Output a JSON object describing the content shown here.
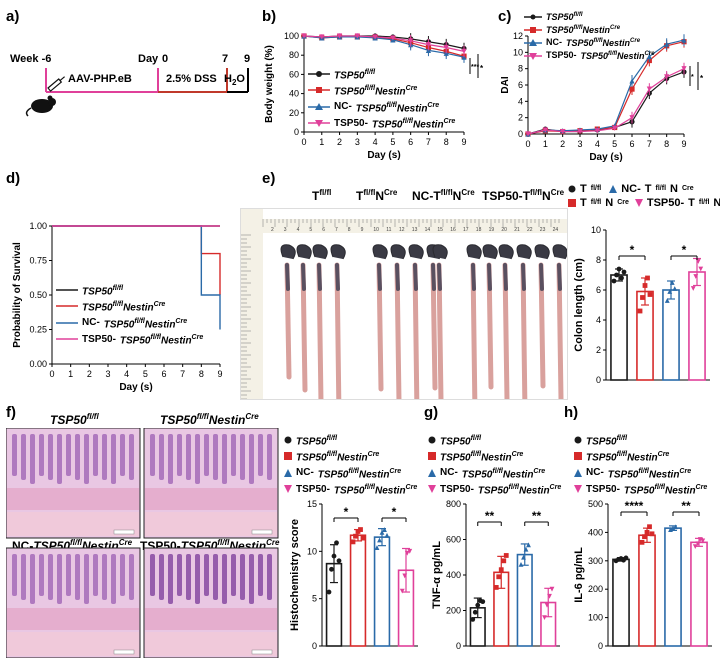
{
  "panel_labels": {
    "a": "a)",
    "b": "b)",
    "c": "c)",
    "d": "d)",
    "e": "e)",
    "f": "f)",
    "g": "g)",
    "h": "h)"
  },
  "timeline": {
    "week_label": "Week -6",
    "day_label": "Day",
    "day0": "0",
    "day7": "7",
    "day9": "9",
    "aav_label": "AAV-PHP.eB",
    "dss_label": "2.5% DSS",
    "water_label": "H",
    "water_sub": "2",
    "water_tail": "O"
  },
  "genotypes": {
    "g1": {
      "base": "TSP50",
      "sup": "fl/fl",
      "mid": "",
      "mid_sup": "",
      "color": "#1a1a1a",
      "marker": "circle"
    },
    "g2": {
      "base": "TSP50",
      "sup": "fl/fl",
      "mid": "Nestin",
      "mid_sup": "Cre",
      "color": "#d62a2a",
      "marker": "square"
    },
    "g3": {
      "prefix": "NC-",
      "base": "TSP50",
      "sup": "fl/fl",
      "mid": "Nestin",
      "mid_sup": "Cre",
      "color": "#2a6aa8",
      "marker": "triangle"
    },
    "g4": {
      "prefix": "TSP50-",
      "base": "TSP50",
      "sup": "fl/fl",
      "mid": "Nestin",
      "mid_sup": "Cre",
      "color": "#e0409a",
      "marker": "invtriangle"
    }
  },
  "colors": {
    "black": "#1a1a1a",
    "red": "#d62a2a",
    "blue": "#2a6aa8",
    "pink": "#e0409a"
  },
  "chart_data": [
    {
      "id": "b",
      "type": "line",
      "xlabel": "Day (s)",
      "ylabel": "Body weight (%)",
      "x": [
        0,
        1,
        2,
        3,
        4,
        5,
        6,
        7,
        8,
        9
      ],
      "xlim": [
        0,
        9
      ],
      "ylim": [
        0,
        100
      ],
      "yticks": [
        0,
        20,
        40,
        60,
        80,
        100
      ],
      "series": [
        {
          "name": "TSP50fl/fl",
          "values": [
            100,
            99,
            100,
            100,
            100,
            99,
            97,
            94,
            91,
            87
          ]
        },
        {
          "name": "TSP50fl/flNestinCre",
          "values": [
            100,
            98,
            99,
            99,
            99,
            97,
            93,
            88,
            84,
            79
          ]
        },
        {
          "name": "NC-TSP50fl/flNestinCre",
          "values": [
            100,
            98,
            99,
            99,
            98,
            96,
            91,
            85,
            82,
            78
          ]
        },
        {
          "name": "TSP50-TSP50fl/flNestinCre",
          "values": [
            100,
            99,
            100,
            100,
            99,
            98,
            95,
            91,
            88,
            84
          ]
        }
      ],
      "significance": [
        "***",
        "*"
      ]
    },
    {
      "id": "c",
      "type": "line",
      "xlabel": "Day (s)",
      "ylabel": "DAI",
      "x": [
        0,
        1,
        2,
        3,
        4,
        5,
        6,
        7,
        8,
        9
      ],
      "xlim": [
        0,
        9
      ],
      "ylim": [
        0,
        12
      ],
      "yticks": [
        0,
        2,
        4,
        6,
        8,
        10,
        12
      ],
      "series": [
        {
          "name": "TSP50fl/fl",
          "values": [
            0,
            0.6,
            0.3,
            0.3,
            0.5,
            0.8,
            1.5,
            5.0,
            6.8,
            7.6
          ]
        },
        {
          "name": "TSP50fl/flNestinCre",
          "values": [
            0,
            0.4,
            0.3,
            0.4,
            0.6,
            0.8,
            5.5,
            9.0,
            10.8,
            11.3
          ]
        },
        {
          "name": "NC-TSP50fl/flNestinCre",
          "values": [
            0,
            0.5,
            0.4,
            0.5,
            0.6,
            1.0,
            6.5,
            9.5,
            11.0,
            11.5
          ]
        },
        {
          "name": "TSP50-TSP50fl/flNestinCre",
          "values": [
            0,
            0.5,
            0.3,
            0.3,
            0.4,
            0.7,
            2.0,
            5.5,
            7.0,
            8.0
          ]
        }
      ],
      "significance": [
        "*",
        "*"
      ]
    },
    {
      "id": "d",
      "type": "line",
      "xlabel": "Day (s)",
      "ylabel": "Probability of Survival",
      "xlim": [
        0,
        9
      ],
      "ylim": [
        0,
        1
      ],
      "yticks": [
        0.0,
        0.25,
        0.5,
        0.75,
        1.0
      ],
      "ytick_labels": [
        "0.00",
        "0.25",
        "0.50",
        "0.75",
        "1.00"
      ],
      "series": [
        {
          "name": "TSP50fl/fl",
          "steps": [
            [
              0,
              1
            ],
            [
              9,
              1
            ]
          ]
        },
        {
          "name": "TSP50fl/flNestinCre",
          "steps": [
            [
              0,
              1
            ],
            [
              8,
              1
            ],
            [
              8,
              0.8
            ],
            [
              9,
              0.8
            ],
            [
              9,
              0.5
            ]
          ]
        },
        {
          "name": "NC-TSP50fl/flNestinCre",
          "steps": [
            [
              0,
              1
            ],
            [
              8,
              1
            ],
            [
              8,
              0.5
            ],
            [
              9,
              0.5
            ],
            [
              9,
              0.25
            ]
          ]
        },
        {
          "name": "TSP50-TSP50fl/flNestinCre",
          "steps": [
            [
              0,
              1
            ],
            [
              9,
              1
            ]
          ]
        }
      ]
    },
    {
      "id": "e",
      "type": "bar",
      "ylabel": "Colon length (cm)",
      "ylim": [
        0,
        10
      ],
      "yticks": [
        0,
        2,
        4,
        6,
        8,
        10
      ],
      "categories": [
        "Tfl/fl",
        "Tfl/flNCre",
        "NC-Tfl/flNCre",
        "TSP50-Tfl/flNCre"
      ],
      "values": [
        7.0,
        5.9,
        6.0,
        7.2
      ],
      "errors": [
        0.4,
        0.9,
        0.6,
        0.9
      ],
      "points": [
        [
          6.6,
          7.0,
          7.4,
          6.8,
          7.2
        ],
        [
          4.6,
          5.5,
          6.3,
          6.8,
          5.7
        ],
        [
          5.3,
          5.9,
          6.5,
          6.1
        ],
        [
          6.1,
          6.9,
          7.9,
          7.4
        ]
      ],
      "significance": [
        "*",
        "*"
      ]
    },
    {
      "id": "f",
      "type": "bar",
      "ylabel": "Histochemistry score",
      "ylim": [
        0,
        15
      ],
      "yticks": [
        0,
        5,
        10,
        15
      ],
      "categories": [
        "TSP50fl/fl",
        "TSP50fl/flNestinCre",
        "NC-TSP50fl/flNestinCre",
        "TSP50-TSP50fl/flNestinCre"
      ],
      "values": [
        8.7,
        11.7,
        11.5,
        8.0
      ],
      "errors": [
        2.0,
        0.6,
        0.9,
        2.3
      ],
      "points": [
        [
          5.7,
          8.1,
          9.5,
          10.9,
          9.0
        ],
        [
          11.0,
          11.6,
          12.1,
          12.3,
          11.4
        ],
        [
          10.4,
          11.2,
          12.0,
          12.3,
          11.7
        ],
        [
          5.8,
          7.4,
          9.8,
          10.0
        ]
      ],
      "significance": [
        "*",
        "*"
      ]
    },
    {
      "id": "g",
      "type": "bar",
      "ylabel": "TNF-α pg/mL",
      "ylim": [
        0,
        800
      ],
      "yticks": [
        0,
        200,
        400,
        600,
        800
      ],
      "categories": [
        "TSP50fl/fl",
        "TSP50fl/flNestinCre",
        "NC-TSP50fl/flNestinCre",
        "TSP50-TSP50fl/flNestinCre"
      ],
      "values": [
        215,
        415,
        515,
        245
      ],
      "errors": [
        55,
        90,
        60,
        80
      ],
      "points": [
        [
          150,
          190,
          230,
          255,
          250
        ],
        [
          330,
          390,
          430,
          480,
          510
        ],
        [
          460,
          500,
          545,
          570
        ],
        [
          160,
          230,
          280,
          320
        ]
      ],
      "significance": [
        "**",
        "**"
      ]
    },
    {
      "id": "h",
      "type": "bar",
      "ylabel": "IL-6 pg/mL",
      "ylim": [
        0,
        500
      ],
      "yticks": [
        0,
        100,
        200,
        300,
        400,
        500
      ],
      "categories": [
        "TSP50fl/fl",
        "TSP50fl/flNestinCre",
        "NC-TSP50fl/flNestinCre",
        "TSP50-TSP50fl/flNestinCre"
      ],
      "values": [
        305,
        390,
        415,
        365
      ],
      "errors": [
        6,
        25,
        8,
        14
      ],
      "points": [
        [
          300,
          305,
          308,
          302,
          310
        ],
        [
          365,
          385,
          400,
          420,
          395
        ],
        [
          410,
          415,
          420
        ],
        [
          350,
          360,
          375,
          370
        ]
      ],
      "significance": [
        "****",
        "**"
      ]
    }
  ],
  "legend_e": {
    "t1": {
      "base": "T",
      "sup": "fl/fl",
      "mid": "",
      "mid_sup": ""
    },
    "t2": {
      "base": "T",
      "sup": "fl/fl",
      "mid": "N",
      "mid_sup": "Cre"
    },
    "t3": {
      "prefix": "NC-",
      "base": "T",
      "sup": "fl/fl",
      "mid": "N",
      "mid_sup": "Cre"
    },
    "t4": {
      "prefix": "TSP50-",
      "base": "T",
      "sup": "fl/fl",
      "mid": "N",
      "mid_sup": "Cre"
    }
  },
  "photo_e": {
    "ruler_numbers": [
      "2",
      "3",
      "4",
      "5",
      "6",
      "7",
      "8",
      "9",
      "10",
      "11",
      "12",
      "13",
      "14",
      "15",
      "16",
      "17",
      "18",
      "19",
      "20",
      "21",
      "22",
      "23",
      "24"
    ]
  },
  "histology_titles": {
    "tl": {
      "base": "TSP50",
      "sup": "fl/fl",
      "mid": "",
      "mid_sup": ""
    },
    "tr": {
      "base": "TSP50",
      "sup": "fl/fl",
      "mid": "Nestin",
      "mid_sup": "Cre"
    },
    "bl": {
      "prefix": "NC-",
      "base": "TSP50",
      "sup": "fl/fl",
      "mid": "Nestin",
      "mid_sup": "Cre"
    },
    "br": {
      "prefix": "TSP50-",
      "base": "TSP50",
      "sup": "fl/fl",
      "mid": "Nestin",
      "mid_sup": "Cre"
    }
  }
}
